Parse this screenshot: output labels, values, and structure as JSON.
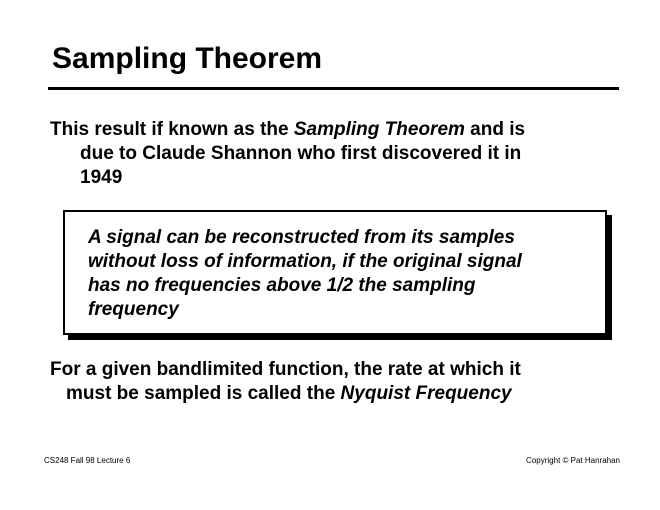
{
  "slide": {
    "title": "Sampling Theorem",
    "intro": {
      "lines": [
        "This result if known as the ",
        "due to Claude Shannon who first discovered it in",
        "1949"
      ],
      "emphasis": "Sampling Theorem",
      "after_emphasis": " and is"
    },
    "theorem_box": {
      "lines": [
        "A signal can be reconstructed from its samples",
        "without loss of information, if the original signal",
        "has no frequencies above 1/2 the sampling",
        "frequency"
      ]
    },
    "nyquist": {
      "lines": [
        "For a given bandlimited function, the rate at which it",
        "must be sampled is called the "
      ],
      "emphasis": "Nyquist Frequency"
    },
    "footer": {
      "left": "CS248 Fall 98 Lecture 6",
      "right": "Copyright © Pat Hanrahan"
    }
  }
}
